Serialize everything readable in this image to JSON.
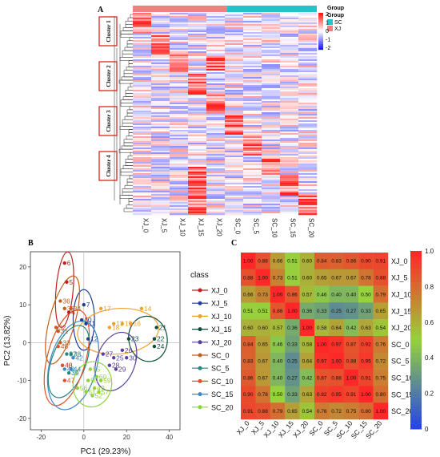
{
  "panelA": {
    "label": "A",
    "legend_group_title_top": "Group",
    "legend_group_title": "Group",
    "legend_groups": [
      {
        "name": "SC",
        "color": "#20c5cc"
      },
      {
        "name": "XJ",
        "color": "#f08080"
      }
    ],
    "color_scale_ticks": [
      "2",
      "1",
      "0",
      "-1",
      "-2"
    ],
    "clusters": [
      "Cluster 1",
      "Cluster 2",
      "Cluster 3",
      "Cluster 4"
    ],
    "columns": [
      "XJ_0",
      "XJ_5",
      "XJ_10",
      "XJ_15",
      "XJ_20",
      "SC_0",
      "SC_5",
      "SC_10",
      "SC_15",
      "SC_20"
    ]
  },
  "panelB": {
    "label": "B",
    "legend_title": "class",
    "classes": [
      {
        "name": "XJ_0",
        "color": "#c0211f"
      },
      {
        "name": "XJ_5",
        "color": "#1f3f99"
      },
      {
        "name": "XJ_10",
        "color": "#f0a030"
      },
      {
        "name": "XJ_15",
        "color": "#0d4d3c"
      },
      {
        "name": "XJ_20",
        "color": "#5a3f9e"
      },
      {
        "name": "SC_0",
        "color": "#c06020"
      },
      {
        "name": "SC_5",
        "color": "#20867e"
      },
      {
        "name": "SC_10",
        "color": "#e0502a"
      },
      {
        "name": "SC_15",
        "color": "#3d87c4"
      },
      {
        "name": "SC_20",
        "color": "#8fd43a"
      }
    ],
    "xlabel": "PC1 (29.23%)",
    "ylabel": "PC2 (13.82%)",
    "xticks": [
      "-20",
      "0",
      "20",
      "40"
    ],
    "yticks": [
      "20",
      "10",
      "0",
      "-10",
      "-20"
    ],
    "point_labels": [
      "6",
      "5",
      "4",
      "36",
      "34",
      "7",
      "10",
      "11",
      "12",
      "17",
      "14",
      "13",
      "15",
      "18",
      "16",
      "23",
      "22",
      "21",
      "24",
      "27",
      "29",
      "28",
      "30",
      "26",
      "25",
      "31",
      "33",
      "32",
      "35",
      "37",
      "38",
      "40",
      "39",
      "46",
      "47",
      "48",
      "42",
      "44",
      "43",
      "49",
      "50",
      "56",
      "60",
      "55",
      "59",
      "57",
      "51",
      "52"
    ]
  },
  "chart_data": {
    "type": "heatmap",
    "title": "",
    "rows": [
      "XJ_0",
      "XJ_5",
      "XJ_10",
      "XJ_15",
      "XJ_20",
      "SC_0",
      "SC_5",
      "SC_10",
      "SC_15",
      "SC_20"
    ],
    "cols": [
      "XJ_0",
      "XJ_5",
      "XJ_10",
      "XJ_15",
      "XJ_20",
      "SC_0",
      "SC_5",
      "SC_10",
      "SC_15",
      "SC_20"
    ],
    "values": [
      [
        "1.00",
        "0.88",
        "0.66",
        "0.51",
        "0.60",
        "0.84",
        "0.83",
        "0.86",
        "0.90",
        "0.91"
      ],
      [
        "0.88",
        "1.00",
        "0.73",
        "0.51",
        "0.60",
        "0.65",
        "0.67",
        "0.67",
        "0.78",
        "0.88"
      ],
      [
        "0.66",
        "0.73",
        "1.00",
        "0.86",
        "0.57",
        "0.46",
        "0.40",
        "0.40",
        "0.50",
        "0.79"
      ],
      [
        "0.51",
        "0.51",
        "0.86",
        "1.00",
        "0.36",
        "0.33",
        "0.25",
        "0.27",
        "0.33",
        "0.65"
      ],
      [
        "0.60",
        "0.60",
        "0.57",
        "0.36",
        "1.00",
        "0.58",
        "0.64",
        "0.42",
        "0.63",
        "0.54"
      ],
      [
        "0.84",
        "0.65",
        "0.46",
        "0.33",
        "0.58",
        "1.00",
        "0.97",
        "0.87",
        "0.92",
        "0.76"
      ],
      [
        "0.83",
        "0.67",
        "0.40",
        "0.25",
        "0.64",
        "0.97",
        "1.00",
        "0.88",
        "0.95",
        "0.72"
      ],
      [
        "0.86",
        "0.67",
        "0.40",
        "0.27",
        "0.42",
        "0.87",
        "0.88",
        "1.00",
        "0.91",
        "0.75"
      ],
      [
        "0.90",
        "0.78",
        "0.50",
        "0.33",
        "0.63",
        "0.92",
        "0.95",
        "0.91",
        "1.00",
        "0.80"
      ],
      [
        "0.91",
        "0.88",
        "0.79",
        "0.65",
        "0.54",
        "0.76",
        "0.72",
        "0.75",
        "0.80",
        "1.00"
      ]
    ],
    "colorbar_ticks": [
      "1.0",
      "0.8",
      "0.6",
      "0.4",
      "0.2",
      "0"
    ]
  },
  "panelC": {
    "label": "C"
  }
}
